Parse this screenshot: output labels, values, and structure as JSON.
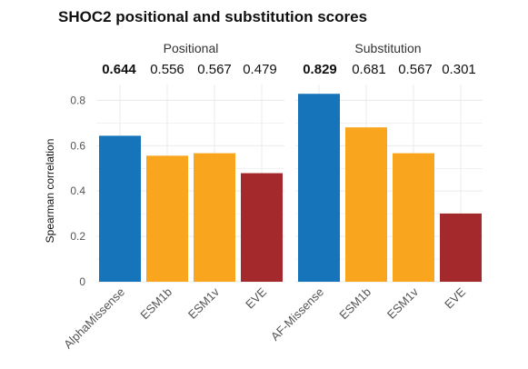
{
  "chart_data": {
    "type": "bar",
    "title": "SHOC2 positional and substitution scores",
    "ylabel": "Spearman correlation",
    "xlabel": "",
    "ylim": [
      0,
      0.87
    ],
    "yticks": [
      0,
      0.2,
      0.4,
      0.6,
      0.8
    ],
    "ytick_labels": [
      "0",
      "0.2",
      "0.4",
      "0.6",
      "0.8"
    ],
    "grid": true,
    "legend": "none",
    "facets": [
      {
        "label": "Positional",
        "categories": [
          "AlphaMissense",
          "ESM1b",
          "ESM1v",
          "EVE"
        ],
        "values": [
          0.644,
          0.556,
          0.567,
          0.479
        ],
        "score_labels": [
          "0.644",
          "0.556",
          "0.567",
          "0.479"
        ],
        "colors": [
          "#1674BA",
          "#F9A61E",
          "#F9A61E",
          "#A4292D"
        ]
      },
      {
        "label": "Substitution",
        "categories": [
          "AF-Missense",
          "ESM1b",
          "ESM1v",
          "EVE"
        ],
        "values": [
          0.829,
          0.681,
          0.567,
          0.301
        ],
        "score_labels": [
          "0.829",
          "0.681",
          "0.567",
          "0.301"
        ],
        "colors": [
          "#1674BA",
          "#F9A61E",
          "#F9A61E",
          "#A4292D"
        ]
      }
    ],
    "colors": {
      "alphamissense": "#1674BA",
      "esm": "#F9A61E",
      "eve": "#A4292D",
      "grid": "#EBEBEB"
    }
  }
}
